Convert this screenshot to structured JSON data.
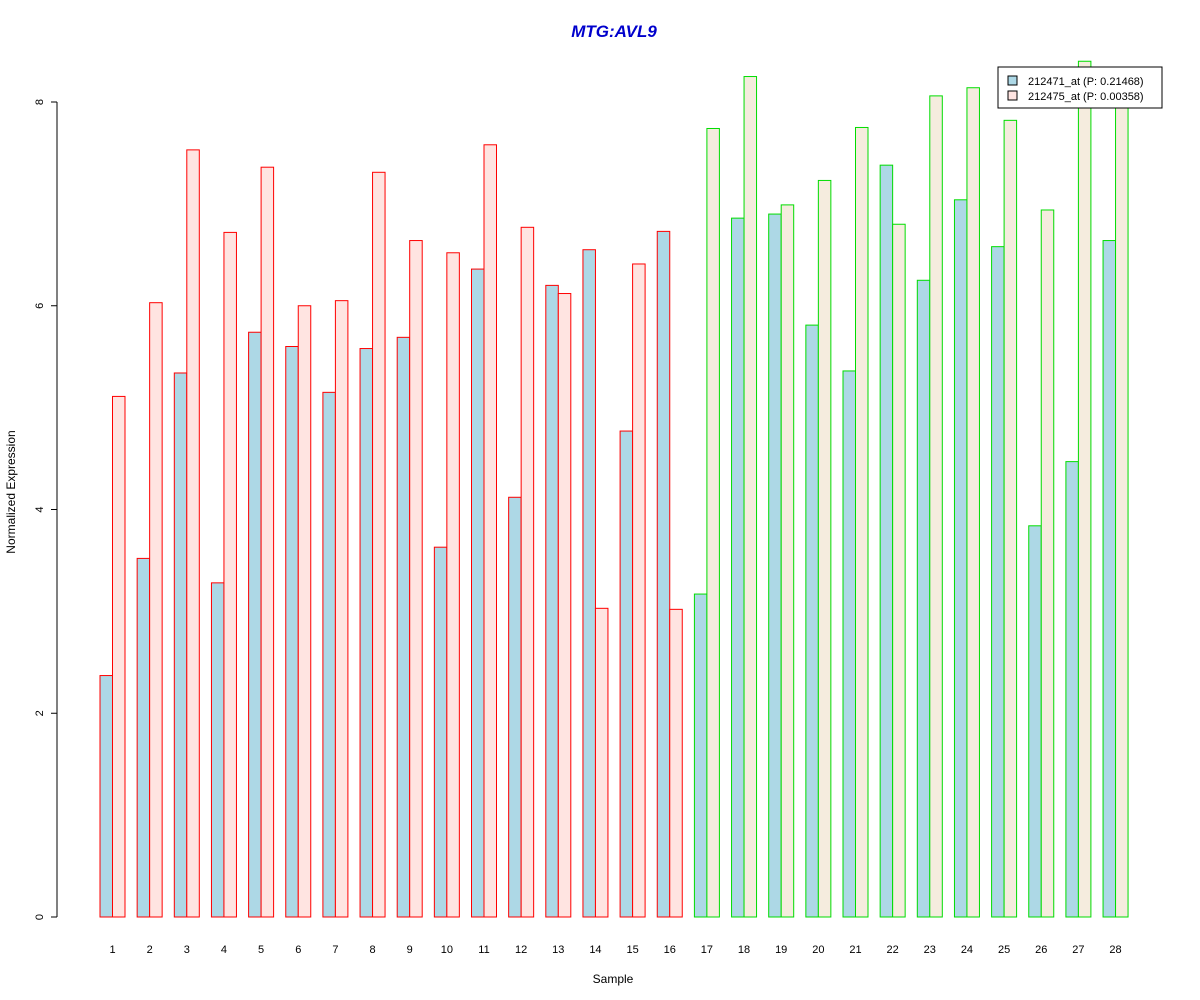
{
  "chart_data": {
    "type": "bar",
    "title": "MTG:AVL9",
    "xlabel": "Sample",
    "ylabel": "Normalized Expression",
    "ylim": [
      0,
      8
    ],
    "yticks": [
      0,
      2,
      4,
      6,
      8
    ],
    "categories": [
      "1",
      "2",
      "3",
      "4",
      "5",
      "6",
      "7",
      "8",
      "9",
      "10",
      "11",
      "12",
      "13",
      "14",
      "15",
      "16",
      "17",
      "18",
      "19",
      "20",
      "21",
      "22",
      "23",
      "24",
      "25",
      "26",
      "27",
      "28"
    ],
    "series": [
      {
        "name": "212471_at (P: 0.21468)",
        "values": [
          2.37,
          3.52,
          5.34,
          3.28,
          5.74,
          5.6,
          5.15,
          5.58,
          5.69,
          3.63,
          6.36,
          4.12,
          6.2,
          6.55,
          4.77,
          6.73,
          3.17,
          6.86,
          6.9,
          5.81,
          5.36,
          7.38,
          6.25,
          7.04,
          6.58,
          3.84,
          4.47,
          6.64
        ]
      },
      {
        "name": "212475_at (P: 0.00358)",
        "values": [
          5.11,
          6.03,
          7.53,
          6.72,
          7.36,
          6.0,
          6.05,
          7.31,
          6.64,
          6.52,
          7.58,
          6.77,
          6.12,
          3.03,
          6.41,
          3.02,
          7.74,
          8.25,
          6.99,
          7.23,
          7.75,
          6.8,
          8.06,
          8.14,
          7.82,
          6.94,
          8.4,
          8.0
        ]
      }
    ],
    "group_border_colors": {
      "group1": "#ff0000",
      "group2": "#00dd00"
    },
    "group1_count": 16,
    "colors": {
      "series1_fill": "#add8e6",
      "series2_fill_group1": "#ffe4e1",
      "series2_fill_group2": "#f5ecde",
      "title": "#0000cc"
    },
    "legend_position": "top-right",
    "grid": false
  }
}
